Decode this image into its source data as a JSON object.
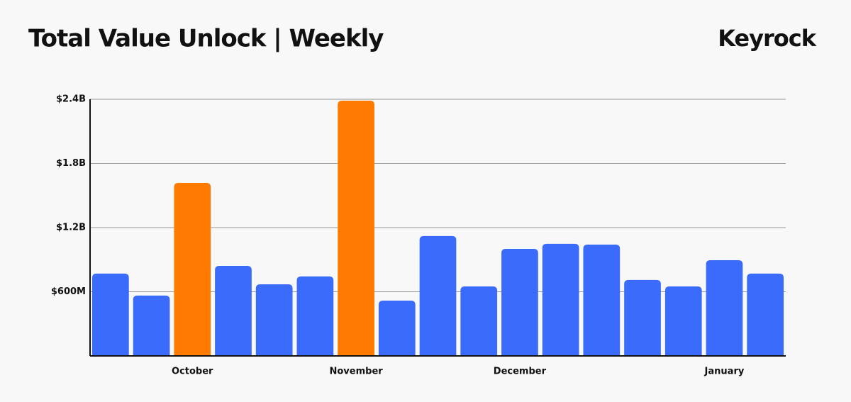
{
  "chart_data": {
    "type": "bar",
    "title": "Total Value Unlock | Weekly",
    "brand": "Keyrock",
    "categories": [
      null,
      null,
      "October",
      null,
      null,
      null,
      "November",
      null,
      null,
      null,
      "December",
      null,
      null,
      null,
      null,
      "January",
      null
    ],
    "values": [
      770000000,
      564000000,
      1618000000,
      842000000,
      670000000,
      743000000,
      2387000000,
      517000000,
      1121000000,
      650000000,
      1001000000,
      1048000000,
      1041000000,
      710000000,
      650000000,
      895000000,
      770000000
    ],
    "colors": [
      "#3a6bfa",
      "#3a6bfa",
      "#ff7a00",
      "#3a6bfa",
      "#3a6bfa",
      "#3a6bfa",
      "#ff7a00",
      "#3a6bfa",
      "#3a6bfa",
      "#3a6bfa",
      "#3a6bfa",
      "#3a6bfa",
      "#3a6bfa",
      "#3a6bfa",
      "#3a6bfa",
      "#3a6bfa",
      "#3a6bfa"
    ],
    "ylim": [
      0,
      2400000000
    ],
    "yticks": [
      {
        "value": 600000000,
        "label": "$600M"
      },
      {
        "value": 1200000000,
        "label": "$1.2B"
      },
      {
        "value": 1800000000,
        "label": "$1.8B"
      },
      {
        "value": 2400000000,
        "label": "$2.4B"
      }
    ],
    "grid": true
  }
}
